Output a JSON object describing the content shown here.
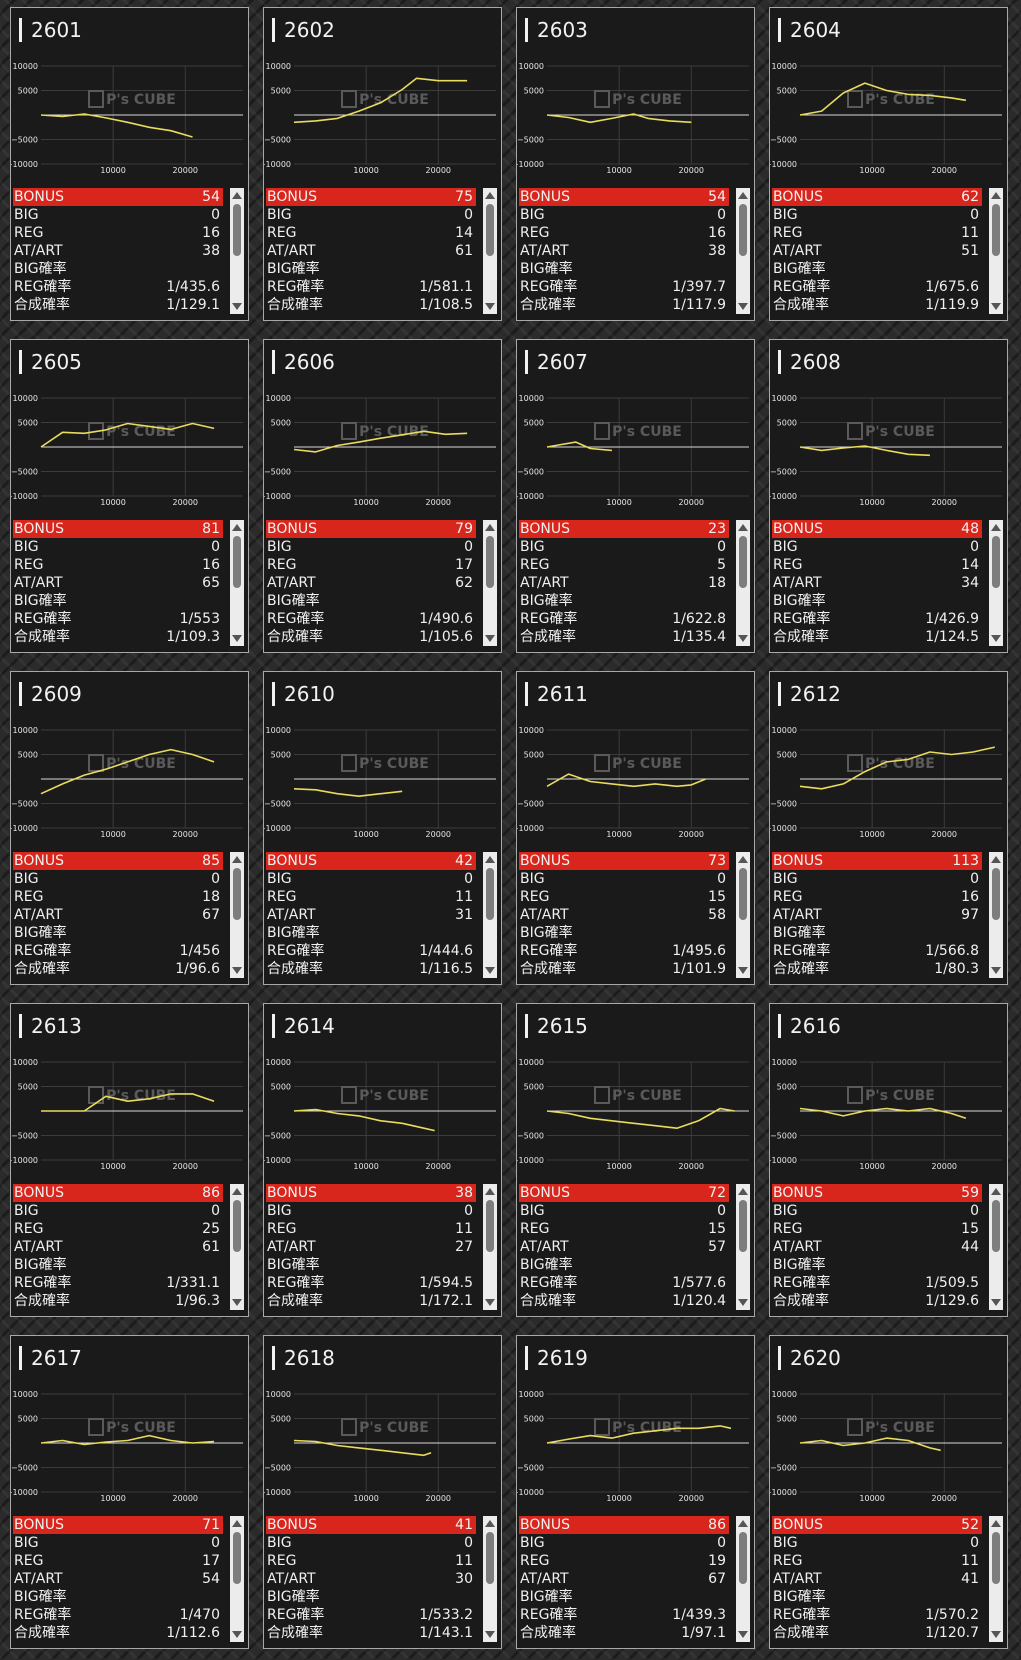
{
  "labels": {
    "bonus": "BONUS",
    "big": "BIG",
    "reg": "REG",
    "atart": "AT/ART",
    "big_prob": "BIG確率",
    "reg_prob": "REG確率",
    "total_prob": "合成確率"
  },
  "watermark": "P's CUBE",
  "colors": {
    "bonus_bar": "#d9261c",
    "graph_line": "#e8dc5c",
    "panel_bg": "#1a1a1a",
    "border": "#a8a8a8"
  },
  "machines": [
    {
      "no": "2601",
      "bonus": "54",
      "big": "0",
      "reg": "16",
      "atart": "38",
      "big_prob": "",
      "reg_prob": "1/435.6",
      "total_prob": "1/129.1",
      "chart_data": {
        "type": "line",
        "x": [
          0,
          3000,
          6000,
          9000,
          12000,
          15000,
          18000,
          21000
        ],
        "y": [
          0,
          -300,
          200,
          -600,
          -1500,
          -2500,
          -3200,
          -4500
        ],
        "ylim": [
          -10000,
          10000
        ],
        "yticks": [
          10000,
          5000,
          -5000,
          -10000
        ],
        "xticks": [
          10000,
          20000
        ]
      }
    },
    {
      "no": "2602",
      "bonus": "75",
      "big": "0",
      "reg": "14",
      "atart": "61",
      "big_prob": "",
      "reg_prob": "1/581.1",
      "total_prob": "1/108.5",
      "chart_data": {
        "type": "line",
        "x": [
          0,
          3000,
          6000,
          9000,
          12000,
          15000,
          17000,
          20000,
          24000
        ],
        "y": [
          -1500,
          -1200,
          -700,
          800,
          2500,
          5200,
          7500,
          7000,
          7000
        ],
        "ylim": [
          -10000,
          10000
        ],
        "yticks": [
          10000,
          5000,
          -5000,
          -10000
        ],
        "xticks": [
          10000,
          20000
        ]
      }
    },
    {
      "no": "2603",
      "bonus": "54",
      "big": "0",
      "reg": "16",
      "atart": "38",
      "big_prob": "",
      "reg_prob": "1/397.7",
      "total_prob": "1/117.9",
      "chart_data": {
        "type": "line",
        "x": [
          0,
          3000,
          6000,
          9000,
          12000,
          14000,
          17000,
          20000
        ],
        "y": [
          0,
          -500,
          -1500,
          -700,
          200,
          -700,
          -1200,
          -1500
        ],
        "ylim": [
          -10000,
          10000
        ],
        "yticks": [
          10000,
          5000,
          -5000,
          -10000
        ],
        "xticks": [
          10000,
          20000
        ]
      }
    },
    {
      "no": "2604",
      "bonus": "62",
      "big": "0",
      "reg": "11",
      "atart": "51",
      "big_prob": "",
      "reg_prob": "1/675.6",
      "total_prob": "1/119.9",
      "chart_data": {
        "type": "line",
        "x": [
          0,
          3000,
          6000,
          9000,
          12000,
          15000,
          18000,
          21000,
          23000
        ],
        "y": [
          0,
          800,
          4500,
          6500,
          5000,
          4200,
          4000,
          3500,
          3000
        ],
        "ylim": [
          -10000,
          10000
        ],
        "yticks": [
          10000,
          5000,
          -5000,
          -10000
        ],
        "xticks": [
          10000,
          20000
        ]
      }
    },
    {
      "no": "2605",
      "bonus": "81",
      "big": "0",
      "reg": "16",
      "atart": "65",
      "big_prob": "",
      "reg_prob": "1/553",
      "total_prob": "1/109.3",
      "chart_data": {
        "type": "line",
        "x": [
          0,
          3000,
          6000,
          9000,
          12000,
          15000,
          18000,
          21000,
          24000
        ],
        "y": [
          0,
          3000,
          2800,
          3500,
          4800,
          4200,
          3600,
          4800,
          3800
        ],
        "ylim": [
          -10000,
          10000
        ],
        "yticks": [
          10000,
          5000,
          -5000,
          -10000
        ],
        "xticks": [
          10000,
          20000
        ]
      }
    },
    {
      "no": "2606",
      "bonus": "79",
      "big": "0",
      "reg": "17",
      "atart": "62",
      "big_prob": "",
      "reg_prob": "1/490.6",
      "total_prob": "1/105.6",
      "chart_data": {
        "type": "line",
        "x": [
          0,
          3000,
          6000,
          9000,
          12000,
          15000,
          18000,
          21000,
          24000
        ],
        "y": [
          -500,
          -1000,
          300,
          1000,
          1800,
          2500,
          3200,
          2600,
          2800
        ],
        "ylim": [
          -10000,
          10000
        ],
        "yticks": [
          10000,
          5000,
          -5000,
          -10000
        ],
        "xticks": [
          10000,
          20000
        ]
      }
    },
    {
      "no": "2607",
      "bonus": "23",
      "big": "0",
      "reg": "5",
      "atart": "18",
      "big_prob": "",
      "reg_prob": "1/622.8",
      "total_prob": "1/135.4",
      "chart_data": {
        "type": "line",
        "x": [
          0,
          2000,
          4000,
          6000,
          9000
        ],
        "y": [
          0,
          500,
          1000,
          -300,
          -700
        ],
        "ylim": [
          -10000,
          10000
        ],
        "yticks": [
          10000,
          5000,
          -5000,
          -10000
        ],
        "xticks": [
          10000,
          20000
        ]
      }
    },
    {
      "no": "2608",
      "bonus": "48",
      "big": "0",
      "reg": "14",
      "atart": "34",
      "big_prob": "",
      "reg_prob": "1/426.9",
      "total_prob": "1/124.5",
      "chart_data": {
        "type": "line",
        "x": [
          0,
          3000,
          6000,
          9000,
          12000,
          15000,
          18000
        ],
        "y": [
          0,
          -700,
          -200,
          200,
          -700,
          -1500,
          -1700
        ],
        "ylim": [
          -10000,
          10000
        ],
        "yticks": [
          10000,
          5000,
          -5000,
          -10000
        ],
        "xticks": [
          10000,
          20000
        ]
      }
    },
    {
      "no": "2609",
      "bonus": "85",
      "big": "0",
      "reg": "18",
      "atart": "67",
      "big_prob": "",
      "reg_prob": "1/456",
      "total_prob": "1/96.6",
      "chart_data": {
        "type": "line",
        "x": [
          0,
          3000,
          6000,
          9000,
          12000,
          15000,
          18000,
          21000,
          24000
        ],
        "y": [
          -3000,
          -1000,
          800,
          2000,
          3500,
          5000,
          6000,
          5000,
          3500
        ],
        "ylim": [
          -10000,
          10000
        ],
        "yticks": [
          10000,
          5000,
          -5000,
          -10000
        ],
        "xticks": [
          10000,
          20000
        ]
      }
    },
    {
      "no": "2610",
      "bonus": "42",
      "big": "0",
      "reg": "11",
      "atart": "31",
      "big_prob": "",
      "reg_prob": "1/444.6",
      "total_prob": "1/116.5",
      "chart_data": {
        "type": "line",
        "x": [
          0,
          3000,
          6000,
          9000,
          12000,
          15000
        ],
        "y": [
          -2000,
          -2200,
          -3000,
          -3500,
          -3000,
          -2500
        ],
        "ylim": [
          -10000,
          10000
        ],
        "yticks": [
          10000,
          5000,
          -5000,
          -10000
        ],
        "xticks": [
          10000,
          20000
        ]
      }
    },
    {
      "no": "2611",
      "bonus": "73",
      "big": "0",
      "reg": "15",
      "atart": "58",
      "big_prob": "",
      "reg_prob": "1/495.6",
      "total_prob": "1/101.9",
      "chart_data": {
        "type": "line",
        "x": [
          0,
          3000,
          6000,
          9000,
          12000,
          15000,
          18000,
          20000,
          22000
        ],
        "y": [
          -1500,
          1000,
          -500,
          -1000,
          -1500,
          -1000,
          -1500,
          -1200,
          0
        ],
        "ylim": [
          -10000,
          10000
        ],
        "yticks": [
          10000,
          5000,
          -5000,
          -10000
        ],
        "xticks": [
          10000,
          20000
        ]
      }
    },
    {
      "no": "2612",
      "bonus": "113",
      "big": "0",
      "reg": "16",
      "atart": "97",
      "big_prob": "",
      "reg_prob": "1/566.8",
      "total_prob": "1/80.3",
      "chart_data": {
        "type": "line",
        "x": [
          0,
          3000,
          6000,
          9000,
          12000,
          15000,
          18000,
          21000,
          24000,
          27000
        ],
        "y": [
          -1500,
          -2000,
          -1000,
          1500,
          3500,
          4000,
          5500,
          5000,
          5500,
          6500
        ],
        "ylim": [
          -10000,
          10000
        ],
        "yticks": [
          10000,
          5000,
          -5000,
          -10000
        ],
        "xticks": [
          10000,
          20000
        ]
      }
    },
    {
      "no": "2613",
      "bonus": "86",
      "big": "0",
      "reg": "25",
      "atart": "61",
      "big_prob": "",
      "reg_prob": "1/331.1",
      "total_prob": "1/96.3",
      "chart_data": {
        "type": "line",
        "x": [
          0,
          3000,
          6000,
          9000,
          12000,
          15000,
          18000,
          21000,
          24000
        ],
        "y": [
          0,
          0,
          0,
          3000,
          2000,
          2500,
          3500,
          3500,
          2000
        ],
        "ylim": [
          -10000,
          10000
        ],
        "yticks": [
          10000,
          5000,
          -5000,
          -10000
        ],
        "xticks": [
          10000,
          20000
        ]
      }
    },
    {
      "no": "2614",
      "bonus": "38",
      "big": "0",
      "reg": "11",
      "atart": "27",
      "big_prob": "",
      "reg_prob": "1/594.5",
      "total_prob": "1/172.1",
      "chart_data": {
        "type": "line",
        "x": [
          0,
          3000,
          6000,
          9000,
          12000,
          15000,
          18000,
          19500
        ],
        "y": [
          0,
          300,
          -500,
          -1000,
          -2000,
          -2500,
          -3500,
          -4000
        ],
        "ylim": [
          -10000,
          10000
        ],
        "yticks": [
          10000,
          5000,
          -5000,
          -10000
        ],
        "xticks": [
          10000,
          20000
        ]
      }
    },
    {
      "no": "2615",
      "bonus": "72",
      "big": "0",
      "reg": "15",
      "atart": "57",
      "big_prob": "",
      "reg_prob": "1/577.6",
      "total_prob": "1/120.4",
      "chart_data": {
        "type": "line",
        "x": [
          0,
          3000,
          6000,
          9000,
          12000,
          15000,
          18000,
          21000,
          24000,
          26000
        ],
        "y": [
          0,
          -500,
          -1500,
          -2000,
          -2500,
          -3000,
          -3500,
          -2000,
          500,
          0
        ],
        "ylim": [
          -10000,
          10000
        ],
        "yticks": [
          10000,
          5000,
          -5000,
          -10000
        ],
        "xticks": [
          10000,
          20000
        ]
      }
    },
    {
      "no": "2616",
      "bonus": "59",
      "big": "0",
      "reg": "15",
      "atart": "44",
      "big_prob": "",
      "reg_prob": "1/509.5",
      "total_prob": "1/129.6",
      "chart_data": {
        "type": "line",
        "x": [
          0,
          3000,
          6000,
          9000,
          12000,
          15000,
          18000,
          21000,
          23000
        ],
        "y": [
          500,
          0,
          -1000,
          0,
          500,
          0,
          500,
          -500,
          -1500
        ],
        "ylim": [
          -10000,
          10000
        ],
        "yticks": [
          10000,
          5000,
          -5000,
          -10000
        ],
        "xticks": [
          10000,
          20000
        ]
      }
    },
    {
      "no": "2617",
      "bonus": "71",
      "big": "0",
      "reg": "17",
      "atart": "54",
      "big_prob": "",
      "reg_prob": "1/470",
      "total_prob": "1/112.6",
      "chart_data": {
        "type": "line",
        "x": [
          0,
          3000,
          6000,
          9000,
          12000,
          15000,
          18000,
          21000,
          24000
        ],
        "y": [
          0,
          500,
          -300,
          200,
          500,
          1500,
          500,
          0,
          300
        ],
        "ylim": [
          -10000,
          10000
        ],
        "yticks": [
          10000,
          5000,
          -5000,
          -10000
        ],
        "xticks": [
          10000,
          20000
        ]
      }
    },
    {
      "no": "2618",
      "bonus": "41",
      "big": "0",
      "reg": "11",
      "atart": "30",
      "big_prob": "",
      "reg_prob": "1/533.2",
      "total_prob": "1/143.1",
      "chart_data": {
        "type": "line",
        "x": [
          0,
          3000,
          6000,
          9000,
          12000,
          15000,
          18000,
          19000
        ],
        "y": [
          500,
          300,
          -500,
          -1000,
          -1500,
          -2000,
          -2500,
          -2000
        ],
        "ylim": [
          -10000,
          10000
        ],
        "yticks": [
          10000,
          5000,
          -5000,
          -10000
        ],
        "xticks": [
          10000,
          20000
        ]
      }
    },
    {
      "no": "2619",
      "bonus": "86",
      "big": "0",
      "reg": "19",
      "atart": "67",
      "big_prob": "",
      "reg_prob": "1/439.3",
      "total_prob": "1/97.1",
      "chart_data": {
        "type": "line",
        "x": [
          0,
          3000,
          6000,
          9000,
          12000,
          15000,
          18000,
          21000,
          24000,
          25500
        ],
        "y": [
          0,
          800,
          1500,
          1000,
          2000,
          2500,
          3000,
          3000,
          3500,
          3000
        ],
        "ylim": [
          -10000,
          10000
        ],
        "yticks": [
          10000,
          5000,
          -5000,
          -10000
        ],
        "xticks": [
          10000,
          20000
        ]
      }
    },
    {
      "no": "2620",
      "bonus": "52",
      "big": "0",
      "reg": "11",
      "atart": "41",
      "big_prob": "",
      "reg_prob": "1/570.2",
      "total_prob": "1/120.7",
      "chart_data": {
        "type": "line",
        "x": [
          0,
          3000,
          6000,
          9000,
          12000,
          15000,
          18000,
          19500
        ],
        "y": [
          0,
          500,
          -500,
          0,
          1000,
          500,
          -1000,
          -1500
        ],
        "ylim": [
          -10000,
          10000
        ],
        "yticks": [
          10000,
          5000,
          -5000,
          -10000
        ],
        "xticks": [
          10000,
          20000
        ]
      }
    }
  ]
}
